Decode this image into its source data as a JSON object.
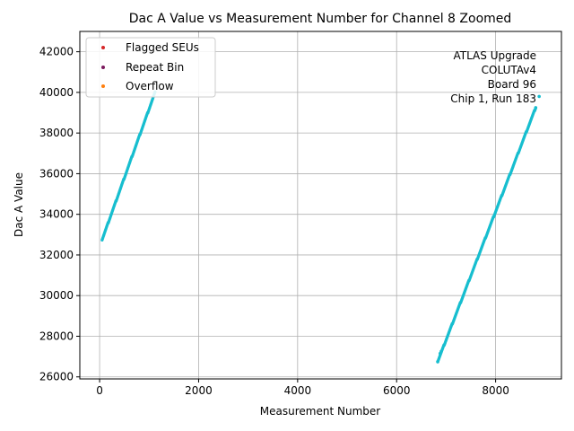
{
  "chart_data": {
    "type": "scatter",
    "title": "Dac A Value vs Measurement Number for Channel 8 Zoomed",
    "xlabel": "Measurement Number",
    "ylabel": "Dac A Value",
    "xlim": [
      -400,
      9330
    ],
    "ylim": [
      25900,
      43000
    ],
    "x_ticks": [
      0,
      2000,
      4000,
      6000,
      8000
    ],
    "y_ticks": [
      26000,
      28000,
      30000,
      32000,
      34000,
      36000,
      38000,
      40000,
      42000
    ],
    "x_tick_labels": [
      "0",
      "2000",
      "4000",
      "6000",
      "8000"
    ],
    "y_tick_labels": [
      "26000",
      "28000",
      "30000",
      "32000",
      "34000",
      "36000",
      "38000",
      "40000",
      "42000"
    ],
    "grid": true,
    "legend_position": "upper left",
    "legend": [
      {
        "label": "Flagged SEUs",
        "color": "#d62728"
      },
      {
        "label": "Repeat Bin",
        "color": "#7b1a5e"
      },
      {
        "label": "Overflow",
        "color": "#ff7f0e"
      }
    ],
    "annotation": [
      "ATLAS Upgrade",
      "COLUTAv4",
      "Board 96",
      "Chip 1, Run 183"
    ],
    "series": [
      {
        "color": "#17becf",
        "segments": [
          {
            "x_start": 50,
            "x_end": 1120,
            "y_start": 32750,
            "y_end": 40000,
            "count": 170
          },
          {
            "x_start": 6830,
            "x_end": 8810,
            "y_start": 26750,
            "y_end": 39250,
            "count": 300
          }
        ],
        "points": [
          [
            6830,
            26750
          ],
          [
            6880,
            27150
          ],
          [
            6900,
            27250
          ],
          [
            8810,
            39250
          ],
          [
            8880,
            39800
          ]
        ]
      }
    ]
  }
}
